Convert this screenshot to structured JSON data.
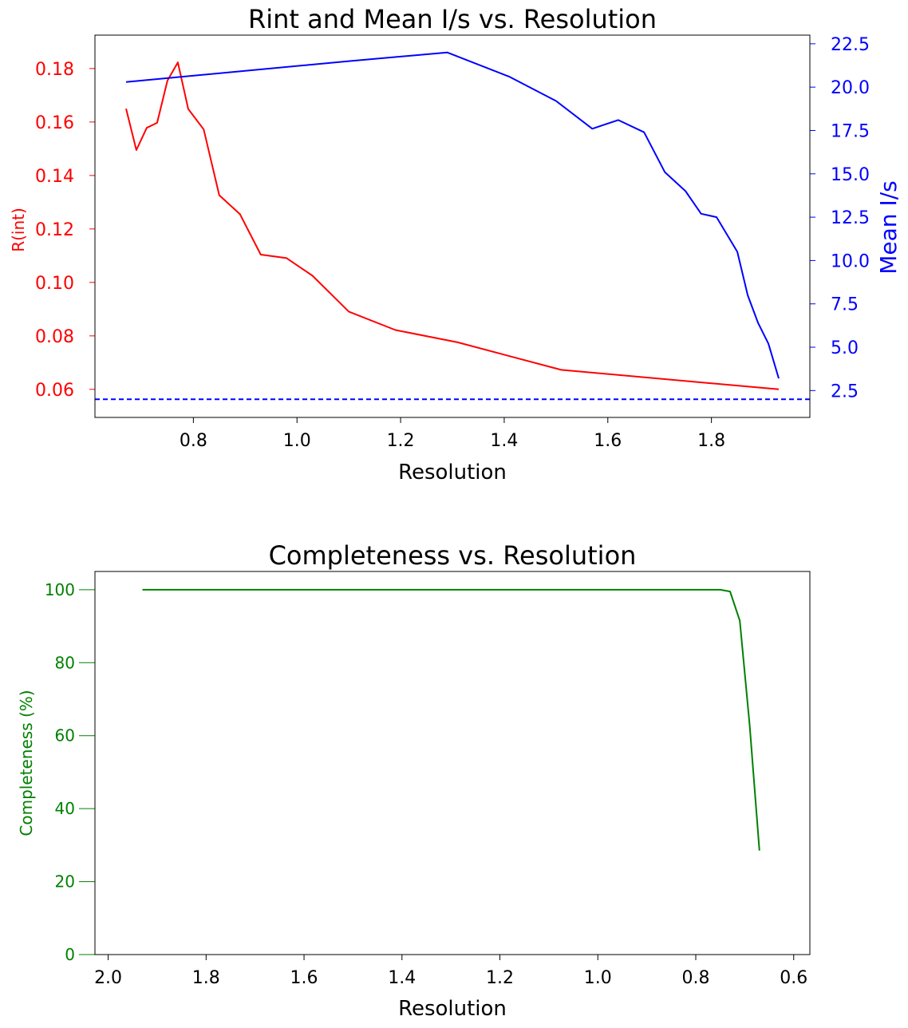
{
  "chart_data": [
    {
      "type": "line",
      "title": "Rint and Mean I/s vs. Resolution",
      "xlabel": "Resolution",
      "ylabel": "R(int)",
      "y2label": "Mean I/s",
      "xlim": [
        0.61,
        1.99
      ],
      "ylim": [
        0.0495,
        0.1925
      ],
      "y2lim": [
        0.95,
        23.0
      ],
      "xticks": [
        "0.8",
        "1.0",
        "1.2",
        "1.4",
        "1.6",
        "1.8"
      ],
      "yticks": [
        "0.06",
        "0.08",
        "0.10",
        "0.12",
        "0.14",
        "0.16",
        "0.18"
      ],
      "y2ticks": [
        "2.5",
        "5.0",
        "7.5",
        "10.0",
        "12.5",
        "15.0",
        "17.5",
        "20.0",
        "22.5"
      ],
      "grid": false,
      "colors": {
        "rint": "#ff0000",
        "meanIs": "#0000ff",
        "threshold": "#0000ff"
      },
      "series": [
        {
          "name": "R(int)",
          "axis": "left",
          "x": [
            0.67,
            0.69,
            0.71,
            0.73,
            0.75,
            0.77,
            0.79,
            0.82,
            0.85,
            0.89,
            0.93,
            0.98,
            1.03,
            1.1,
            1.19,
            1.31,
            1.51,
            1.93
          ],
          "y": [
            0.165,
            0.1495,
            0.1578,
            0.1597,
            0.1755,
            0.1823,
            0.1649,
            0.1572,
            0.1326,
            0.1255,
            0.1104,
            0.1091,
            0.1025,
            0.0891,
            0.0822,
            0.0776,
            0.0673,
            0.06
          ]
        },
        {
          "name": "Mean I/s",
          "axis": "right",
          "x": [
            0.67,
            1.1,
            1.29,
            1.41,
            1.5,
            1.57,
            1.62,
            1.67,
            1.71,
            1.75,
            1.78,
            1.81,
            1.85,
            1.87,
            1.89,
            1.91,
            1.93
          ],
          "y": [
            20.3,
            21.5,
            22.0,
            20.6,
            19.2,
            17.6,
            18.1,
            17.4,
            15.1,
            14.0,
            12.7,
            12.5,
            10.5,
            8.0,
            6.4,
            5.2,
            3.2
          ]
        }
      ],
      "threshold": {
        "axis": "right",
        "y": 2.0,
        "style": "dashed"
      }
    },
    {
      "type": "line",
      "title": "Completeness vs. Resolution",
      "xlabel": "Resolution",
      "ylabel": "Completeness (%)",
      "xlim": [
        2.027,
        0.567
      ],
      "ylim": [
        0,
        105
      ],
      "x_inverted": true,
      "xticks": [
        "2.0",
        "1.8",
        "1.6",
        "1.4",
        "1.2",
        "1.0",
        "0.8",
        "0.6"
      ],
      "yticks": [
        "0",
        "20",
        "40",
        "60",
        "80",
        "100"
      ],
      "grid": false,
      "colors": {
        "completeness": "#008000"
      },
      "series": [
        {
          "name": "Completeness",
          "x": [
            1.93,
            1.2,
            0.75,
            0.73,
            0.71,
            0.69,
            0.67
          ],
          "y": [
            100,
            100,
            100,
            99.5,
            91.5,
            63.0,
            28.5
          ]
        }
      ]
    }
  ]
}
